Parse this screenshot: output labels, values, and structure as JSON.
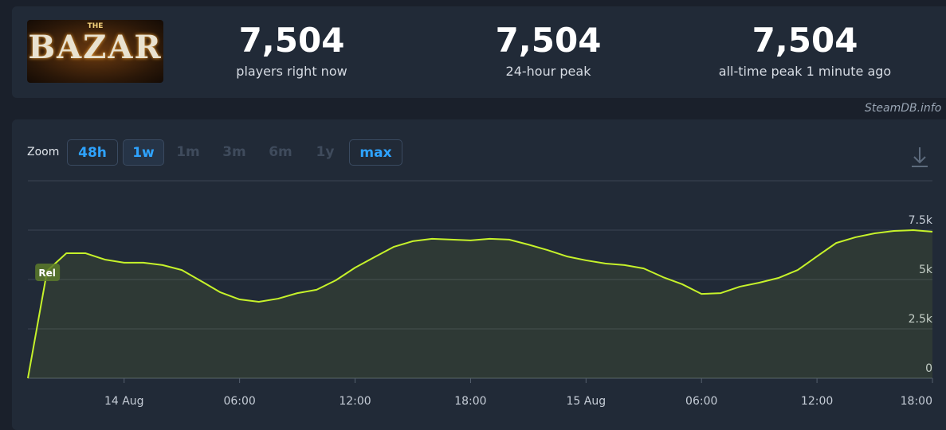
{
  "header": {
    "logo": {
      "top": "THE",
      "main": "BAZAR"
    },
    "stats": [
      {
        "value": "7,504",
        "label": "players right now"
      },
      {
        "value": "7,504",
        "label": "24-hour peak"
      },
      {
        "value": "7,504",
        "label": "all-time peak 1 minute ago"
      }
    ]
  },
  "credit": "SteamDB.info",
  "zoom": {
    "label": "Zoom",
    "buttons": [
      "48h",
      "1w",
      "1m",
      "3m",
      "6m",
      "1y",
      "max"
    ]
  },
  "chart_data": {
    "type": "line",
    "color": "#c6f22a",
    "x": [
      -5,
      -4,
      -3,
      -2,
      -1,
      0,
      1,
      2,
      3,
      4,
      5,
      6,
      7,
      8,
      9,
      10,
      11,
      12,
      13,
      14,
      15,
      16,
      17,
      18,
      19,
      20,
      21,
      22,
      23,
      24,
      25,
      26,
      27,
      28,
      29,
      30,
      31,
      32,
      33,
      34,
      35,
      36,
      37,
      38,
      39,
      40,
      41,
      42
    ],
    "values": [
      0,
      5440,
      6330,
      6330,
      6010,
      5850,
      5850,
      5730,
      5480,
      4920,
      4350,
      3990,
      3870,
      4030,
      4310,
      4480,
      4960,
      5600,
      6130,
      6650,
      6940,
      7060,
      7020,
      6980,
      7060,
      7020,
      6770,
      6490,
      6170,
      5970,
      5810,
      5730,
      5560,
      5120,
      4760,
      4270,
      4310,
      4640,
      4840,
      5080,
      5480,
      6170,
      6850,
      7140,
      7340,
      7460,
      7500,
      7420
    ],
    "xlim": [
      -5,
      42
    ],
    "xticks": [
      {
        "value": 0,
        "label": "14 Aug"
      },
      {
        "value": 6,
        "label": "06:00"
      },
      {
        "value": 12,
        "label": "12:00"
      },
      {
        "value": 18,
        "label": "18:00"
      },
      {
        "value": 24,
        "label": "15 Aug"
      },
      {
        "value": 30,
        "label": "06:00"
      },
      {
        "value": 36,
        "label": "12:00"
      },
      {
        "value": 42,
        "label": "18:00"
      }
    ],
    "ylim": [
      0,
      10000
    ],
    "yticks": [
      0,
      {
        "value": 2500,
        "label": "2.5k"
      },
      {
        "value": 5000,
        "label": "5k"
      },
      {
        "value": 7500,
        "label": "7.5k"
      }
    ],
    "grid": true,
    "annotations": [
      {
        "x": -4,
        "text": "Rel"
      }
    ]
  }
}
